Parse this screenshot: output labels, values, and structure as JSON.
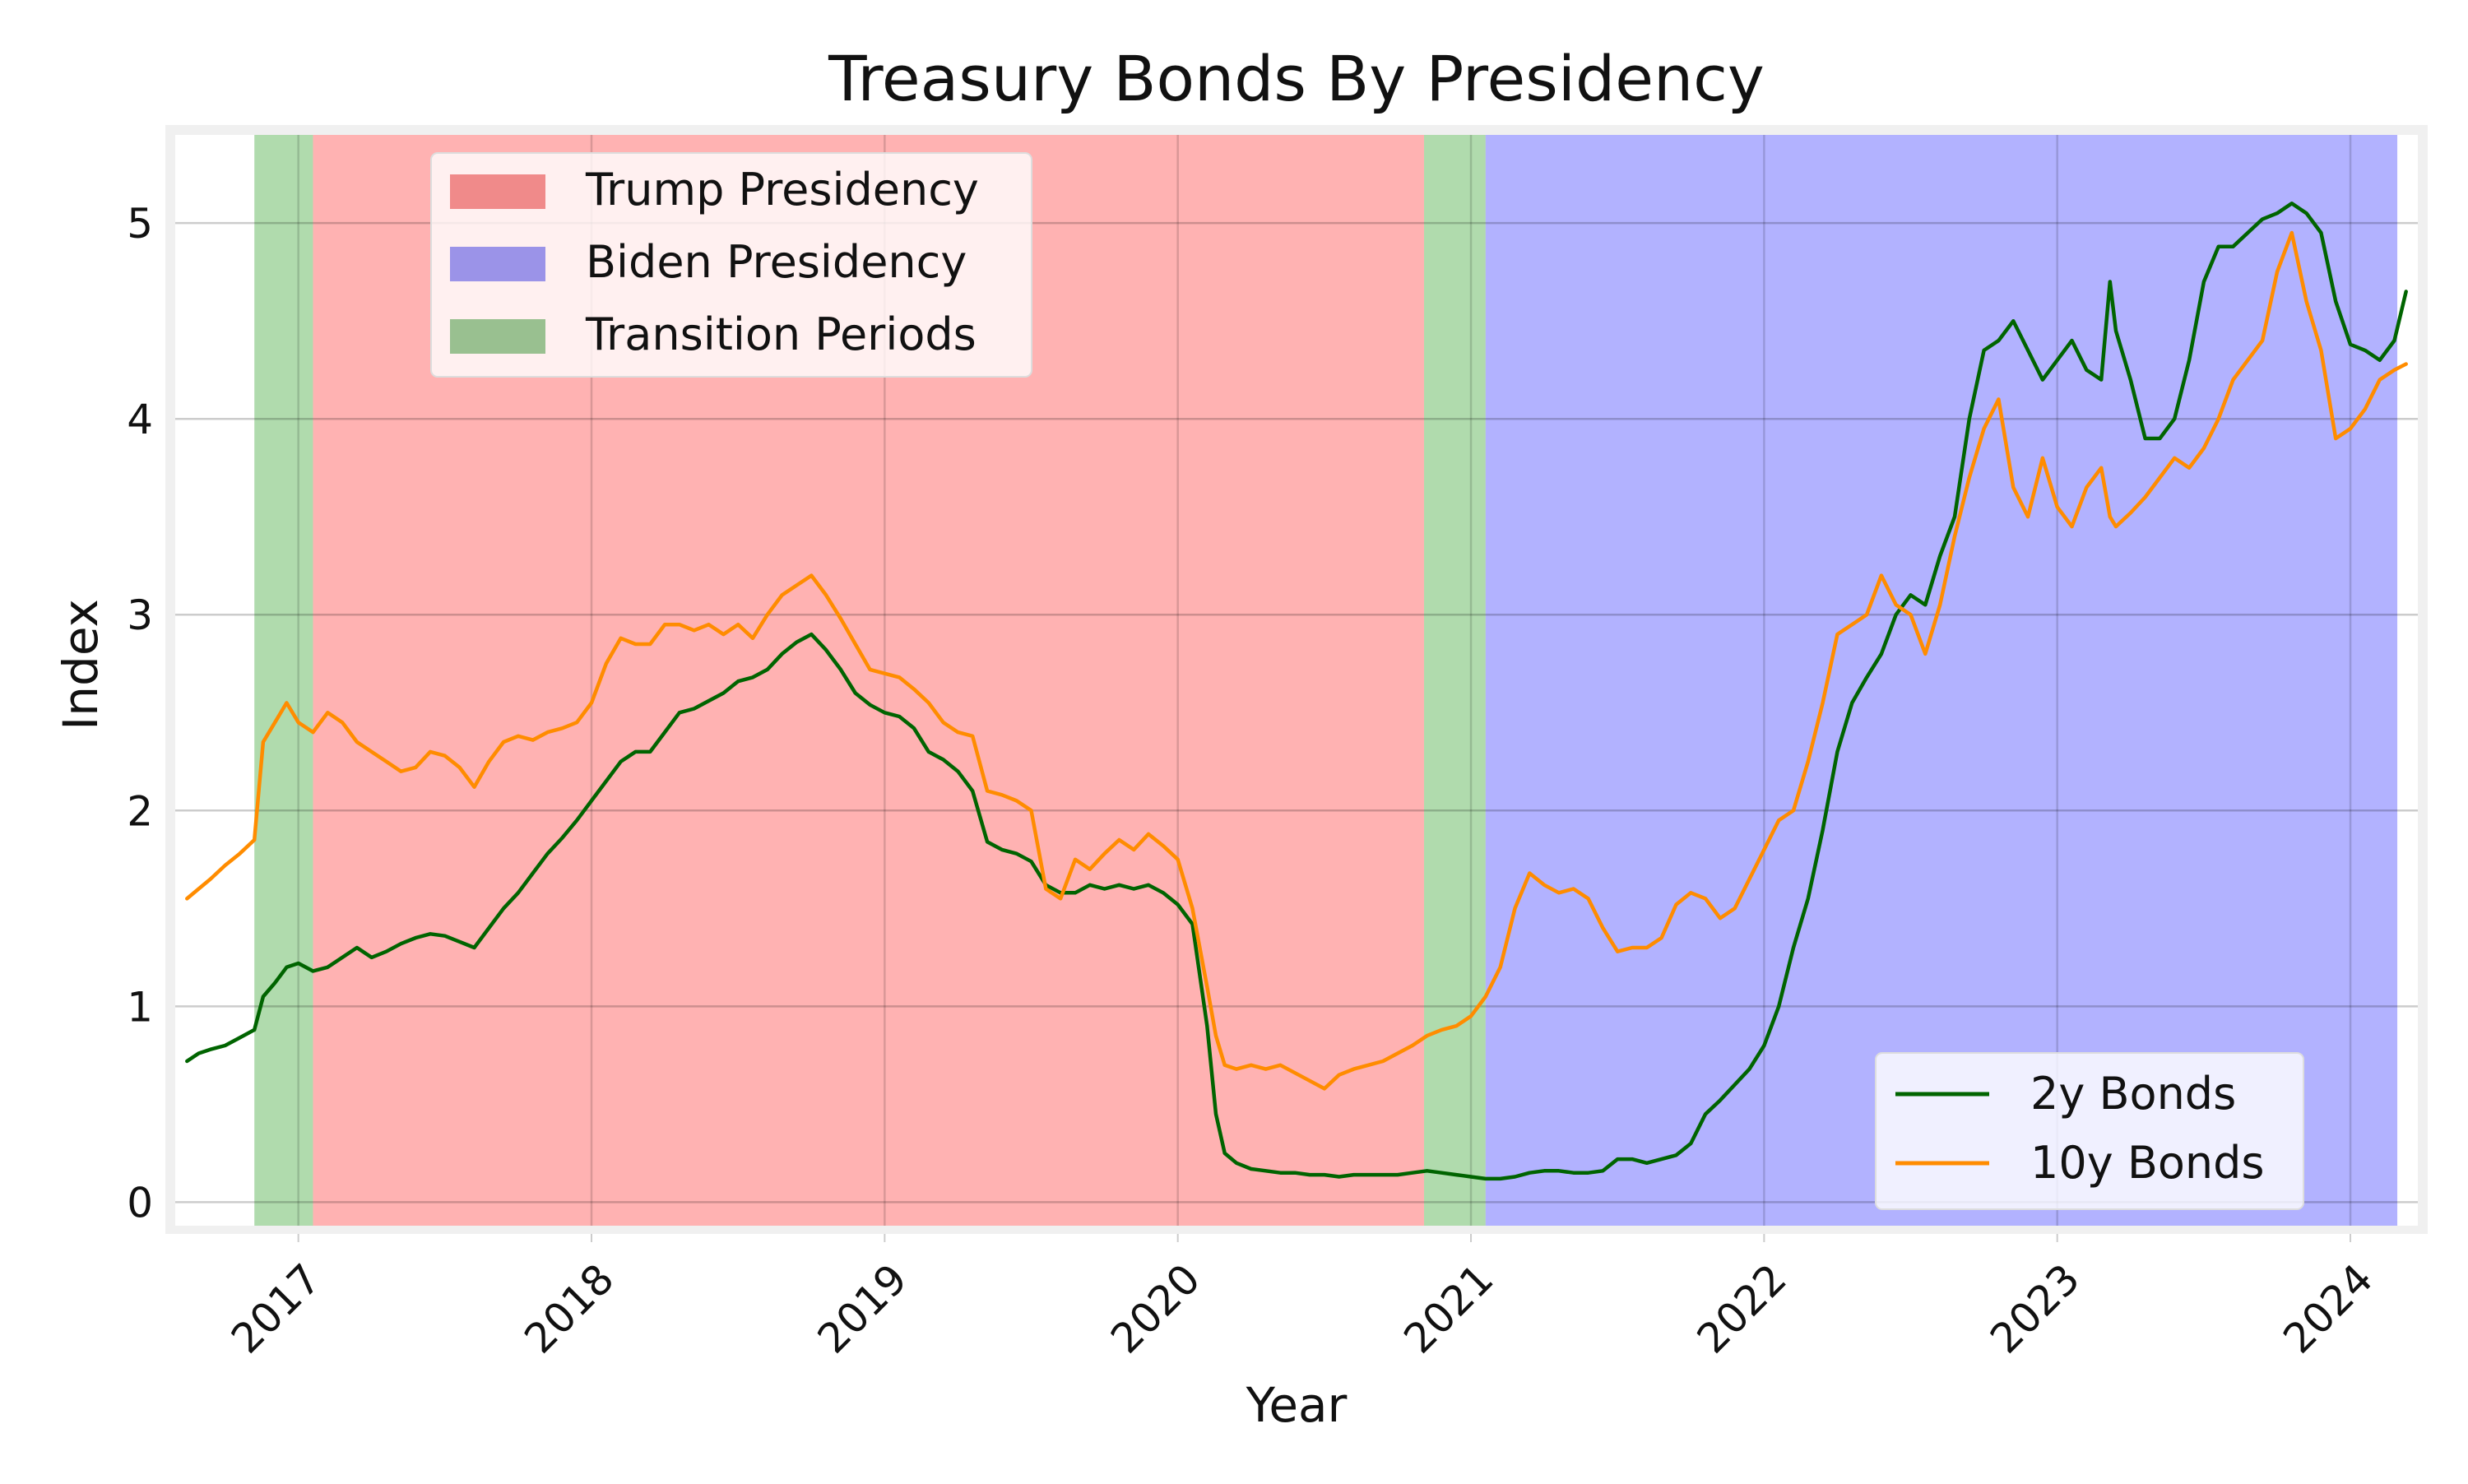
{
  "chart_data": {
    "type": "line",
    "title": "Treasury Bonds By Presidency",
    "xlabel": "Year",
    "ylabel": "Index",
    "xlim": [
      2016.58,
      2024.23
    ],
    "ylim": [
      -0.12,
      5.45
    ],
    "x_ticks": [
      {
        "value": 2017,
        "label": "2017"
      },
      {
        "value": 2018,
        "label": "2018"
      },
      {
        "value": 2019,
        "label": "2019"
      },
      {
        "value": 2020,
        "label": "2020"
      },
      {
        "value": 2021,
        "label": "2021"
      },
      {
        "value": 2022,
        "label": "2022"
      },
      {
        "value": 2023,
        "label": "2023"
      },
      {
        "value": 2024,
        "label": "2024"
      }
    ],
    "y_ticks": [
      {
        "value": 0,
        "label": "0"
      },
      {
        "value": 1,
        "label": "1"
      },
      {
        "value": 2,
        "label": "2"
      },
      {
        "value": 3,
        "label": "3"
      },
      {
        "value": 4,
        "label": "4"
      },
      {
        "value": 5,
        "label": "5"
      }
    ],
    "grid": true,
    "spans": [
      {
        "name": "Transition Periods",
        "start": 2016.85,
        "end": 2017.05,
        "color": "#8fcc8a",
        "alpha": 0.7
      },
      {
        "name": "Trump Presidency",
        "start": 2017.05,
        "end": 2020.84,
        "color": "#ff7f7f",
        "alpha": 0.6
      },
      {
        "name": "Transition Periods",
        "start": 2020.84,
        "end": 2021.05,
        "color": "#8fcc8a",
        "alpha": 0.7
      },
      {
        "name": "Biden Presidency",
        "start": 2021.05,
        "end": 2024.16,
        "color": "#7f7fff",
        "alpha": 0.6
      }
    ],
    "span_legend": {
      "placement": "upper-left",
      "entries": [
        {
          "label": "Trump Presidency",
          "color": "#f08a8a"
        },
        {
          "label": "Biden Presidency",
          "color": "#9b93e8"
        },
        {
          "label": "Transition Periods",
          "color": "#99c090"
        }
      ]
    },
    "line_legend": {
      "placement": "lower-right",
      "entries": [
        {
          "label": "2y Bonds",
          "color": "#006400"
        },
        {
          "label": "10y Bonds",
          "color": "#ff8c00"
        }
      ]
    },
    "series": [
      {
        "name": "2y Bonds",
        "color": "#006400",
        "x": [
          2016.62,
          2016.66,
          2016.7,
          2016.75,
          2016.8,
          2016.85,
          2016.88,
          2016.92,
          2016.96,
          2017.0,
          2017.05,
          2017.1,
          2017.15,
          2017.2,
          2017.25,
          2017.3,
          2017.35,
          2017.4,
          2017.45,
          2017.5,
          2017.55,
          2017.6,
          2017.65,
          2017.7,
          2017.75,
          2017.8,
          2017.85,
          2017.9,
          2017.95,
          2018.0,
          2018.05,
          2018.1,
          2018.15,
          2018.2,
          2018.25,
          2018.3,
          2018.35,
          2018.4,
          2018.45,
          2018.5,
          2018.55,
          2018.6,
          2018.65,
          2018.7,
          2018.75,
          2018.8,
          2018.85,
          2018.9,
          2018.95,
          2019.0,
          2019.05,
          2019.1,
          2019.15,
          2019.2,
          2019.25,
          2019.3,
          2019.35,
          2019.4,
          2019.45,
          2019.5,
          2019.55,
          2019.6,
          2019.65,
          2019.7,
          2019.75,
          2019.8,
          2019.85,
          2019.9,
          2019.95,
          2020.0,
          2020.05,
          2020.1,
          2020.13,
          2020.16,
          2020.2,
          2020.25,
          2020.3,
          2020.35,
          2020.4,
          2020.45,
          2020.5,
          2020.55,
          2020.6,
          2020.65,
          2020.7,
          2020.75,
          2020.8,
          2020.85,
          2020.9,
          2020.95,
          2021.0,
          2021.05,
          2021.1,
          2021.15,
          2021.2,
          2021.25,
          2021.3,
          2021.35,
          2021.4,
          2021.45,
          2021.5,
          2021.55,
          2021.6,
          2021.65,
          2021.7,
          2021.75,
          2021.8,
          2021.85,
          2021.9,
          2021.95,
          2022.0,
          2022.05,
          2022.1,
          2022.15,
          2022.2,
          2022.25,
          2022.3,
          2022.35,
          2022.4,
          2022.45,
          2022.5,
          2022.55,
          2022.6,
          2022.65,
          2022.7,
          2022.75,
          2022.8,
          2022.85,
          2022.9,
          2022.95,
          2023.0,
          2023.05,
          2023.1,
          2023.15,
          2023.18,
          2023.2,
          2023.25,
          2023.3,
          2023.35,
          2023.4,
          2023.45,
          2023.5,
          2023.55,
          2023.6,
          2023.65,
          2023.7,
          2023.75,
          2023.8,
          2023.85,
          2023.9,
          2023.95,
          2024.0,
          2024.05,
          2024.1,
          2024.15,
          2024.19
        ],
        "y": [
          0.72,
          0.76,
          0.78,
          0.8,
          0.84,
          0.88,
          1.05,
          1.12,
          1.2,
          1.22,
          1.18,
          1.2,
          1.25,
          1.3,
          1.25,
          1.28,
          1.32,
          1.35,
          1.37,
          1.36,
          1.33,
          1.3,
          1.4,
          1.5,
          1.58,
          1.68,
          1.78,
          1.86,
          1.95,
          2.05,
          2.15,
          2.25,
          2.3,
          2.3,
          2.4,
          2.5,
          2.52,
          2.56,
          2.6,
          2.66,
          2.68,
          2.72,
          2.8,
          2.86,
          2.9,
          2.82,
          2.72,
          2.6,
          2.54,
          2.5,
          2.48,
          2.42,
          2.3,
          2.26,
          2.2,
          2.1,
          1.84,
          1.8,
          1.78,
          1.74,
          1.62,
          1.58,
          1.58,
          1.62,
          1.6,
          1.62,
          1.6,
          1.62,
          1.58,
          1.52,
          1.42,
          0.9,
          0.45,
          0.25,
          0.2,
          0.17,
          0.16,
          0.15,
          0.15,
          0.14,
          0.14,
          0.13,
          0.14,
          0.14,
          0.14,
          0.14,
          0.15,
          0.16,
          0.15,
          0.14,
          0.13,
          0.12,
          0.12,
          0.13,
          0.15,
          0.16,
          0.16,
          0.15,
          0.15,
          0.16,
          0.22,
          0.22,
          0.2,
          0.22,
          0.24,
          0.3,
          0.45,
          0.52,
          0.6,
          0.68,
          0.8,
          1.0,
          1.3,
          1.55,
          1.9,
          2.3,
          2.55,
          2.68,
          2.8,
          3.0,
          3.1,
          3.05,
          3.3,
          3.5,
          4.0,
          4.35,
          4.4,
          4.5,
          4.35,
          4.2,
          4.3,
          4.4,
          4.25,
          4.2,
          4.7,
          4.45,
          4.2,
          3.9,
          3.9,
          4.0,
          4.3,
          4.7,
          4.88,
          4.88,
          4.95,
          5.02,
          5.05,
          5.1,
          5.05,
          4.95,
          4.6,
          4.38,
          4.35,
          4.3,
          4.4,
          4.65
        ]
      },
      {
        "name": "10y Bonds",
        "color": "#ff8c00",
        "x": [
          2016.62,
          2016.66,
          2016.7,
          2016.75,
          2016.8,
          2016.85,
          2016.88,
          2016.92,
          2016.96,
          2017.0,
          2017.05,
          2017.1,
          2017.15,
          2017.2,
          2017.25,
          2017.3,
          2017.35,
          2017.4,
          2017.45,
          2017.5,
          2017.55,
          2017.6,
          2017.65,
          2017.7,
          2017.75,
          2017.8,
          2017.85,
          2017.9,
          2017.95,
          2018.0,
          2018.05,
          2018.1,
          2018.15,
          2018.2,
          2018.25,
          2018.3,
          2018.35,
          2018.4,
          2018.45,
          2018.5,
          2018.55,
          2018.6,
          2018.65,
          2018.7,
          2018.75,
          2018.8,
          2018.85,
          2018.9,
          2018.95,
          2019.0,
          2019.05,
          2019.1,
          2019.15,
          2019.2,
          2019.25,
          2019.3,
          2019.35,
          2019.4,
          2019.45,
          2019.5,
          2019.55,
          2019.6,
          2019.65,
          2019.7,
          2019.75,
          2019.8,
          2019.85,
          2019.9,
          2019.95,
          2020.0,
          2020.05,
          2020.1,
          2020.13,
          2020.16,
          2020.2,
          2020.25,
          2020.3,
          2020.35,
          2020.4,
          2020.45,
          2020.5,
          2020.55,
          2020.6,
          2020.65,
          2020.7,
          2020.75,
          2020.8,
          2020.85,
          2020.9,
          2020.95,
          2021.0,
          2021.05,
          2021.1,
          2021.15,
          2021.2,
          2021.25,
          2021.3,
          2021.35,
          2021.4,
          2021.45,
          2021.5,
          2021.55,
          2021.6,
          2021.65,
          2021.7,
          2021.75,
          2021.8,
          2021.85,
          2021.9,
          2021.95,
          2022.0,
          2022.05,
          2022.1,
          2022.15,
          2022.2,
          2022.25,
          2022.3,
          2022.35,
          2022.4,
          2022.45,
          2022.5,
          2022.55,
          2022.6,
          2022.65,
          2022.7,
          2022.75,
          2022.8,
          2022.85,
          2022.9,
          2022.95,
          2023.0,
          2023.05,
          2023.1,
          2023.15,
          2023.18,
          2023.2,
          2023.25,
          2023.3,
          2023.35,
          2023.4,
          2023.45,
          2023.5,
          2023.55,
          2023.6,
          2023.65,
          2023.7,
          2023.75,
          2023.8,
          2023.85,
          2023.9,
          2023.95,
          2024.0,
          2024.05,
          2024.1,
          2024.15,
          2024.19
        ],
        "y": [
          1.55,
          1.6,
          1.65,
          1.72,
          1.78,
          1.85,
          2.35,
          2.45,
          2.55,
          2.45,
          2.4,
          2.5,
          2.45,
          2.35,
          2.3,
          2.25,
          2.2,
          2.22,
          2.3,
          2.28,
          2.22,
          2.12,
          2.25,
          2.35,
          2.38,
          2.36,
          2.4,
          2.42,
          2.45,
          2.55,
          2.75,
          2.88,
          2.85,
          2.85,
          2.95,
          2.95,
          2.92,
          2.95,
          2.9,
          2.95,
          2.88,
          3.0,
          3.1,
          3.15,
          3.2,
          3.1,
          2.98,
          2.85,
          2.72,
          2.7,
          2.68,
          2.62,
          2.55,
          2.45,
          2.4,
          2.38,
          2.1,
          2.08,
          2.05,
          2.0,
          1.6,
          1.55,
          1.75,
          1.7,
          1.78,
          1.85,
          1.8,
          1.88,
          1.82,
          1.75,
          1.5,
          1.1,
          0.85,
          0.7,
          0.68,
          0.7,
          0.68,
          0.7,
          0.66,
          0.62,
          0.58,
          0.65,
          0.68,
          0.7,
          0.72,
          0.76,
          0.8,
          0.85,
          0.88,
          0.9,
          0.95,
          1.05,
          1.2,
          1.5,
          1.68,
          1.62,
          1.58,
          1.6,
          1.55,
          1.4,
          1.28,
          1.3,
          1.3,
          1.35,
          1.52,
          1.58,
          1.55,
          1.45,
          1.5,
          1.65,
          1.8,
          1.95,
          2.0,
          2.25,
          2.55,
          2.9,
          2.95,
          3.0,
          3.2,
          3.05,
          3.0,
          2.8,
          3.05,
          3.4,
          3.7,
          3.95,
          4.1,
          3.65,
          3.5,
          3.8,
          3.55,
          3.45,
          3.65,
          3.75,
          3.5,
          3.45,
          3.52,
          3.6,
          3.7,
          3.8,
          3.75,
          3.85,
          4.0,
          4.2,
          4.3,
          4.4,
          4.75,
          4.95,
          4.6,
          4.35,
          3.9,
          3.95,
          4.05,
          4.2,
          4.25,
          4.28
        ]
      }
    ]
  }
}
